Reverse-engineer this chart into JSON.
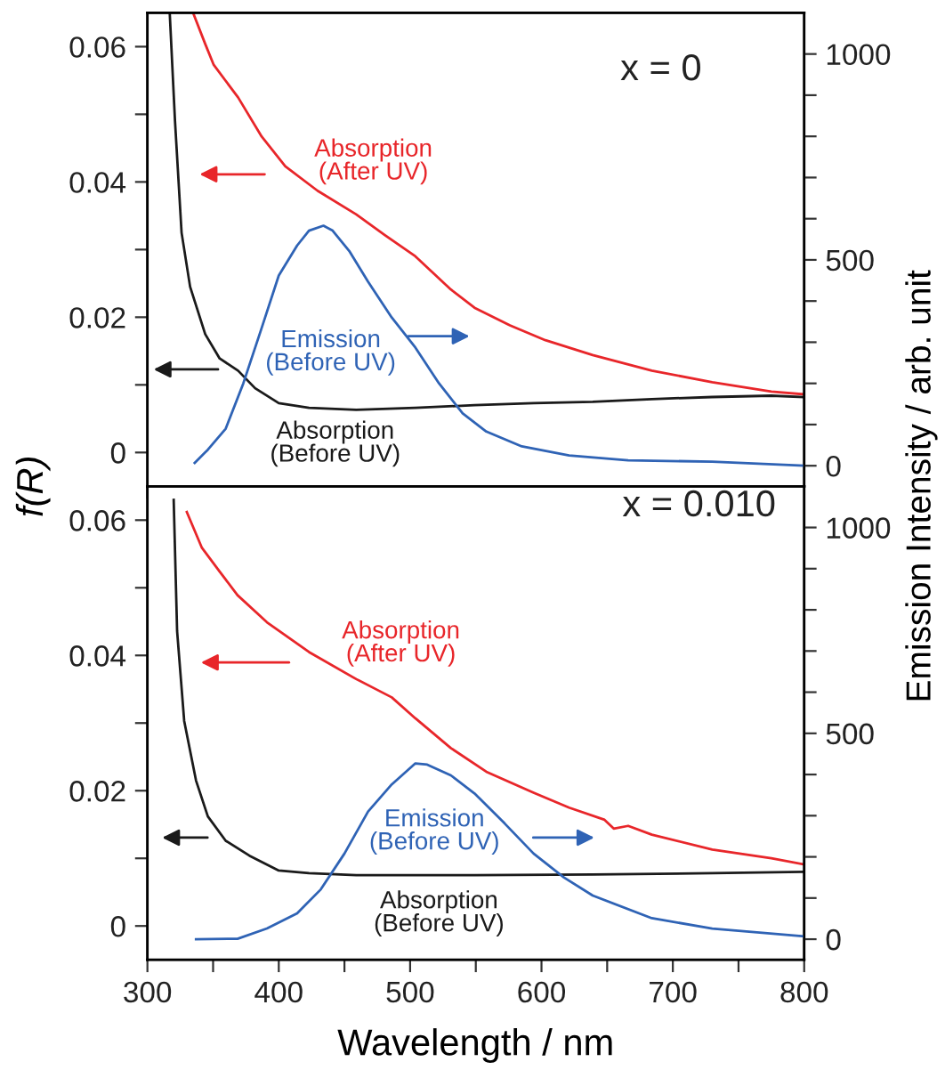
{
  "chart_data": [
    {
      "type": "line",
      "title": "x = 0",
      "ylabel": "f(R)",
      "y2label": "Emission Intensity / arb. unit",
      "tick_labels": "y",
      "grid": false,
      "legend": "center",
      "xlim": [
        300,
        800
      ],
      "xticks": [
        300,
        {
          "value": 350,
          "label": null
        },
        400,
        {
          "value": 450,
          "label": null
        },
        500,
        {
          "value": 550,
          "label": null
        },
        600,
        {
          "value": 650,
          "label": null
        },
        700,
        {
          "value": 750,
          "label": null
        },
        800
      ],
      "ylim": [
        -0.005,
        0.065
      ],
      "yticks": [
        0,
        {
          "value": 0.01,
          "label": null
        },
        0.02,
        {
          "value": 0.03,
          "label": null
        },
        0.04,
        {
          "value": 0.05,
          "label": null
        },
        0.06
      ],
      "y2lim": [
        -50,
        1100
      ],
      "y2ticks": [
        0,
        {
          "value": 100,
          "label": null
        },
        {
          "value": 200,
          "label": null
        },
        {
          "value": 300,
          "label": null
        },
        {
          "value": 400,
          "label": null
        },
        500,
        {
          "value": 600,
          "label": null
        },
        {
          "value": 700,
          "label": null
        },
        {
          "value": 800,
          "label": null
        },
        {
          "value": 900,
          "label": null
        },
        1000
      ],
      "series": [
        {
          "name": "Absorption\n(After UV)",
          "color": "#e8262a",
          "x": [
            335,
            344,
            350.5,
            369,
            387,
            405,
            429.5,
            459,
            481,
            504,
            531,
            549,
            576,
            603,
            639,
            684,
            730,
            775,
            800
          ],
          "values": [
            0.0649,
            0.0604,
            0.0573,
            0.0525,
            0.0467,
            0.0423,
            0.0387,
            0.0352,
            0.0321,
            0.029,
            0.0241,
            0.0214,
            0.0188,
            0.0166,
            0.0144,
            0.0121,
            0.0104,
            0.009,
            0.0086
          ]
        },
        {
          "name": "Emission\n(Before UV)",
          "color": "#2f63b5",
          "axis": "y2",
          "x": [
            336,
            346,
            359.6,
            373,
            386.6,
            400,
            414,
            423,
            434,
            441,
            454,
            468,
            486,
            504,
            522,
            540,
            558,
            585,
            621,
            666,
            730,
            800
          ],
          "values": [
            7,
            39,
            90,
            200,
            331,
            462,
            535,
            571,
            583,
            571,
            520,
            447,
            360,
            287,
            200,
            127,
            83,
            47,
            25,
            13,
            10,
            0
          ]
        },
        {
          "name": "Absorption\n(Before UV)",
          "color": "#1a1a1a",
          "x": [
            317,
            321,
            326,
            332.5,
            344,
            355,
            369,
            382,
            400,
            423,
            459,
            504,
            549,
            594,
            639,
            684,
            730,
            775,
            800
          ],
          "values": [
            0.0649,
            0.049,
            0.0325,
            0.0245,
            0.0175,
            0.0139,
            0.0121,
            0.0095,
            0.0073,
            0.0066,
            0.0063,
            0.0066,
            0.007,
            0.0073,
            0.0075,
            0.0079,
            0.0082,
            0.0084,
            0.0082
          ]
        }
      ]
    },
    {
      "type": "line",
      "title": "x = 0.010",
      "xlabel": "Wavelength / nm",
      "grid": false,
      "legend": "center",
      "xlim": [
        300,
        800
      ],
      "xticks": [
        300,
        {
          "value": 350,
          "label": null
        },
        400,
        {
          "value": 450,
          "label": null
        },
        500,
        {
          "value": 550,
          "label": null
        },
        600,
        {
          "value": 650,
          "label": null
        },
        700,
        {
          "value": 750,
          "label": null
        },
        800
      ],
      "ylim": [
        -0.005,
        0.065
      ],
      "yticks": [
        0,
        {
          "value": 0.01,
          "label": null
        },
        0.02,
        {
          "value": 0.03,
          "label": null
        },
        0.04,
        {
          "value": 0.05,
          "label": null
        },
        0.06
      ],
      "y2lim": [
        -50,
        1100
      ],
      "y2ticks": [
        0,
        {
          "value": 100,
          "label": null
        },
        {
          "value": 200,
          "label": null
        },
        {
          "value": 300,
          "label": null
        },
        {
          "value": 400,
          "label": null
        },
        500,
        {
          "value": 600,
          "label": null
        },
        {
          "value": 700,
          "label": null
        },
        {
          "value": 800,
          "label": null
        },
        {
          "value": 900,
          "label": null
        },
        1000
      ],
      "series": [
        {
          "name": "Absorption\n(After UV)",
          "color": "#e8262a",
          "x": [
            330,
            341.5,
            355,
            368.6,
            391,
            423,
            459,
            486,
            504,
            531,
            558,
            594,
            621,
            648,
            655,
            666,
            684,
            730,
            775,
            800
          ],
          "values": [
            0.0612,
            0.0559,
            0.0524,
            0.0489,
            0.0449,
            0.0405,
            0.0365,
            0.0338,
            0.0307,
            0.0263,
            0.0228,
            0.0197,
            0.0175,
            0.0157,
            0.0144,
            0.0148,
            0.0135,
            0.0113,
            0.01,
            0.0091
          ]
        },
        {
          "name": "Emission\n(Before UV)",
          "color": "#2f63b5",
          "axis": "y2",
          "x": [
            337,
            368.6,
            391,
            414,
            432,
            450,
            468,
            486,
            504,
            513,
            531,
            549,
            572,
            594,
            617,
            639,
            684,
            730,
            800
          ],
          "values": [
            0,
            1,
            26,
            63,
            121,
            208,
            310,
            376,
            427,
            424,
            398,
            354,
            281,
            208,
            150,
            106,
            51,
            26,
            7
          ]
        },
        {
          "name": "Absorption\n(Before UV)",
          "color": "#1a1a1a",
          "x": [
            320,
            322.6,
            328,
            337,
            346,
            359.6,
            377.6,
            400,
            423,
            459,
            549,
            639,
            730,
            800
          ],
          "values": [
            0.063,
            0.0436,
            0.0303,
            0.0215,
            0.0162,
            0.0126,
            0.0104,
            0.0082,
            0.0078,
            0.0075,
            0.0075,
            0.0076,
            0.0078,
            0.008
          ]
        }
      ]
    }
  ]
}
